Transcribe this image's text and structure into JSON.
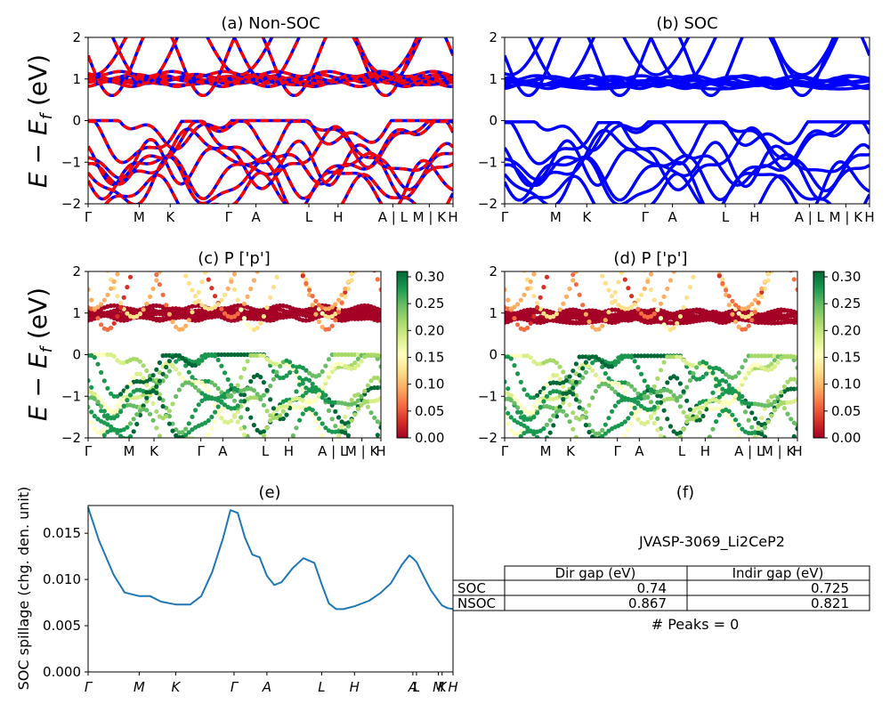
{
  "figure_id": "JVASP-3069_Li2CeP2",
  "energy_axis_label": "E − E_f (eV)",
  "kpath_labels": [
    "Γ",
    "M",
    "K",
    "Γ",
    "A",
    "L",
    "H",
    "A | L",
    "M | K",
    "H"
  ],
  "kpath_labels_e": [
    "Γ",
    "M",
    "K",
    "Γ",
    "A",
    "L",
    "H",
    "A",
    "L",
    "M",
    "K",
    "H"
  ],
  "colorbar_ticks": [
    "0.00",
    "0.05",
    "0.10",
    "0.15",
    "0.20",
    "0.25",
    "0.30"
  ],
  "colors": {
    "nonsoc_up": "#ff0000",
    "nonsoc_dn": "#0000ff",
    "soc": "#0000ff",
    "spillage": "#1f77b4"
  },
  "chart_data": [
    {
      "panel": "a",
      "type": "line",
      "title": "(a) Non-SOC",
      "ylabel": "E − E_f (eV)",
      "ylim": [
        -2,
        2
      ],
      "yticks": [
        -2,
        -1,
        0,
        1,
        2
      ],
      "x_ticks": [
        "Γ",
        "M",
        "K",
        "Γ",
        "A",
        "L",
        "H",
        "A | L",
        "M | K",
        "H"
      ],
      "description_series": [
        "spin-up (red, dashed)",
        "spin-down (blue)"
      ],
      "valence_band_max_eV": 0.0,
      "conduction_band_min_eV": 0.87
    },
    {
      "panel": "b",
      "type": "line",
      "title": "(b) SOC",
      "ylim": [
        -2,
        2
      ],
      "yticks": [
        -2,
        -1,
        0,
        1,
        2
      ],
      "x_ticks": [
        "Γ",
        "M",
        "K",
        "Γ",
        "A",
        "L",
        "H",
        "A | L",
        "M | K",
        "H"
      ],
      "valence_band_max_eV": 0.0,
      "conduction_band_min_eV": 0.74
    },
    {
      "panel": "c",
      "type": "scatter",
      "title": "(c)  P ['p']",
      "ylabel": "E − E_f (eV)",
      "ylim": [
        -2,
        2
      ],
      "yticks": [
        -2,
        -1,
        0,
        1,
        2
      ],
      "x_ticks": [
        "Γ",
        "M",
        "K",
        "Γ",
        "A",
        "L",
        "H",
        "A | L",
        "M | K",
        "H"
      ],
      "colorbar": {
        "min": 0.0,
        "max": 0.31,
        "ticks": [
          0.0,
          0.05,
          0.1,
          0.15,
          0.2,
          0.25,
          0.3
        ],
        "cmap": "RdYlGn"
      }
    },
    {
      "panel": "d",
      "type": "scatter",
      "title": "(d) P ['p']",
      "ylim": [
        -2,
        2
      ],
      "yticks": [
        -2,
        -1,
        0,
        1,
        2
      ],
      "x_ticks": [
        "Γ",
        "M",
        "K",
        "Γ",
        "A",
        "L",
        "H",
        "A | L",
        "M | K",
        "H"
      ],
      "colorbar": {
        "min": 0.0,
        "max": 0.31,
        "ticks": [
          0.0,
          0.05,
          0.1,
          0.15,
          0.2,
          0.25,
          0.3
        ],
        "cmap": "RdYlGn"
      }
    },
    {
      "panel": "e",
      "type": "line",
      "title": "(e)",
      "ylabel": "SOC spillage (chg. den. unit)",
      "ylim": [
        0.0,
        0.018
      ],
      "yticks": [
        "0.000",
        "0.005",
        "0.010",
        "0.015"
      ],
      "x_ticks": [
        "Γ",
        "M",
        "K",
        "Γ",
        "A",
        "L",
        "H",
        "A",
        "L",
        "M",
        "K",
        "H"
      ],
      "kpath_x": [
        0,
        0.14,
        0.24,
        0.4,
        0.49,
        0.64,
        0.73,
        0.89,
        0.9,
        0.96,
        0.97,
        1.0
      ],
      "x": [
        0,
        0.03,
        0.07,
        0.1,
        0.14,
        0.17,
        0.2,
        0.24,
        0.28,
        0.31,
        0.34,
        0.37,
        0.39,
        0.41,
        0.43,
        0.45,
        0.47,
        0.49,
        0.51,
        0.53,
        0.56,
        0.59,
        0.62,
        0.64,
        0.66,
        0.68,
        0.7,
        0.73,
        0.77,
        0.8,
        0.83,
        0.86,
        0.88,
        0.89,
        0.9,
        0.92,
        0.94,
        0.96,
        0.97,
        0.985,
        1.0
      ],
      "values": [
        0.0178,
        0.0142,
        0.0105,
        0.0086,
        0.0082,
        0.0082,
        0.0076,
        0.0073,
        0.0073,
        0.0082,
        0.0108,
        0.0145,
        0.0175,
        0.0172,
        0.0145,
        0.0127,
        0.0124,
        0.0104,
        0.0094,
        0.0097,
        0.0112,
        0.0123,
        0.0118,
        0.0095,
        0.0074,
        0.0068,
        0.0068,
        0.0071,
        0.0077,
        0.0085,
        0.0096,
        0.0116,
        0.0126,
        0.0123,
        0.0119,
        0.0103,
        0.0088,
        0.0077,
        0.0072,
        0.0069,
        0.0068
      ]
    },
    {
      "panel": "f",
      "type": "table",
      "title": "(f)",
      "subtitle": "JVASP-3069_Li2CeP2",
      "columns": [
        "",
        "Dir gap (eV)",
        "Indir gap (eV)"
      ],
      "rows": [
        {
          "label": "SOC",
          "dir_gap": "0.74",
          "indir_gap": "0.725"
        },
        {
          "label": "NSOC",
          "dir_gap": "0.867",
          "indir_gap": "0.821"
        }
      ],
      "note": "# Peaks = 0"
    }
  ]
}
